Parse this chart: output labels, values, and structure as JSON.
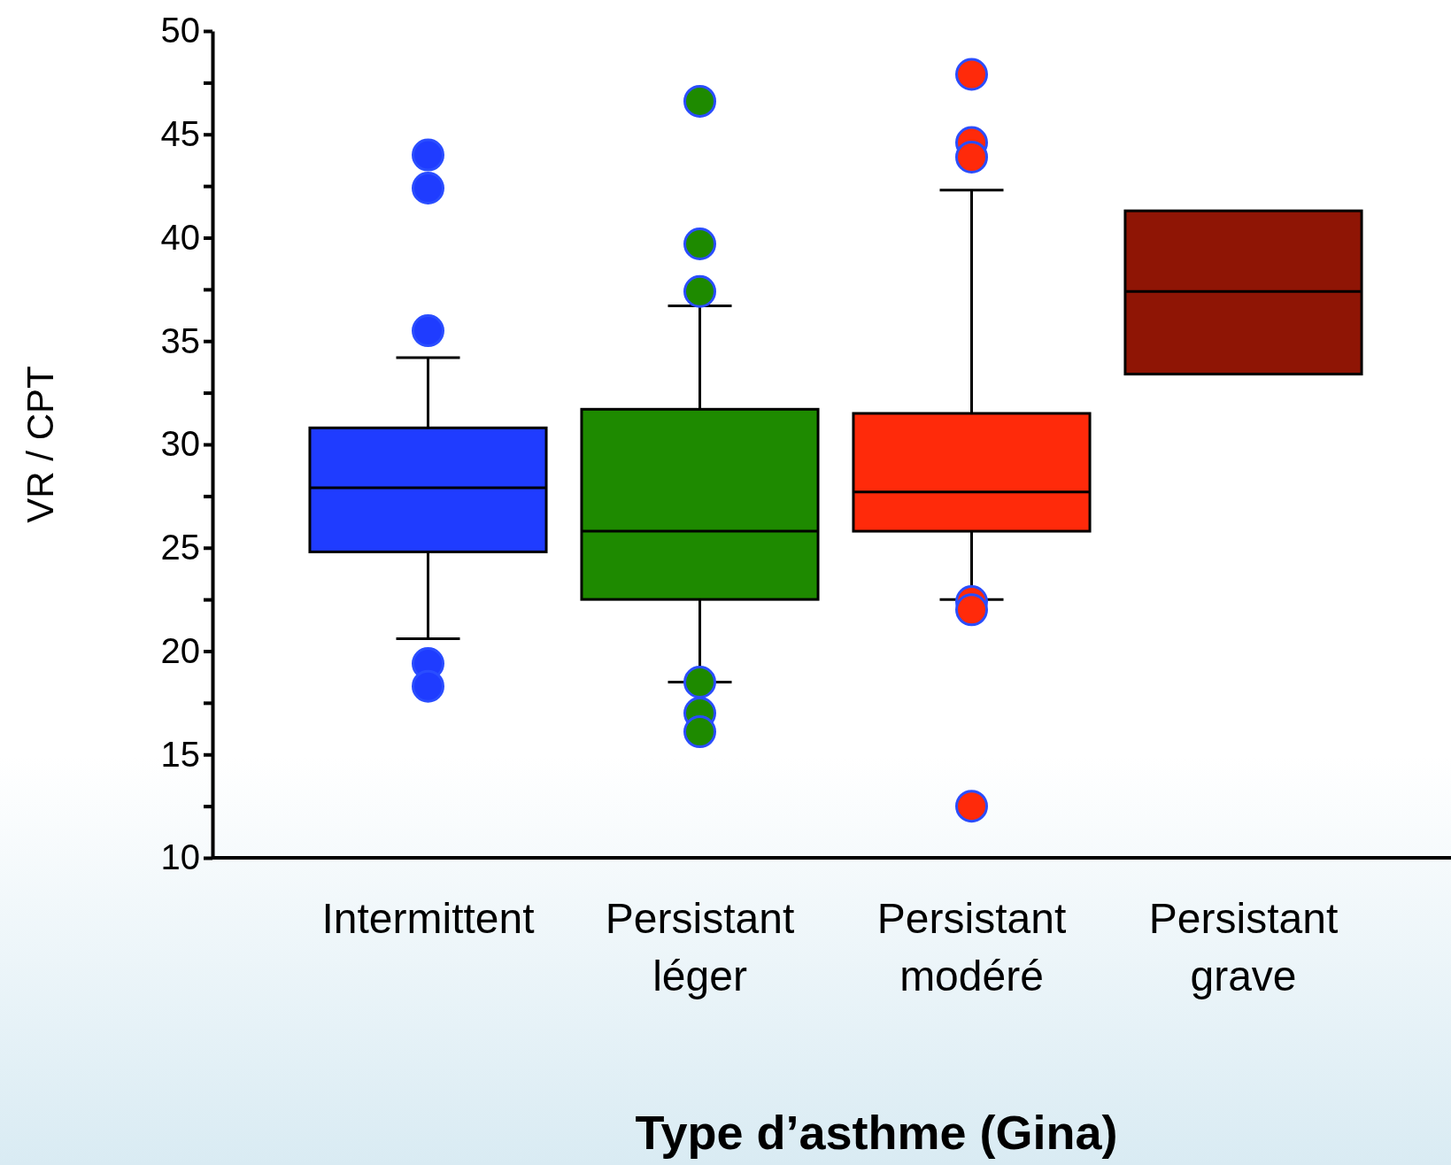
{
  "chart_data": {
    "type": "box",
    "xlabel": "Type d’asthme (Gina)",
    "ylabel": "VR / CPT",
    "categories": [
      "Intermittent",
      "Persistant léger",
      "Persistant modéré",
      "Persistant grave"
    ],
    "colors": [
      "#1f3cff",
      "#1e8a00",
      "#ff2a0a",
      "#8f1505"
    ],
    "boxes": [
      {
        "low": 20.6,
        "q1": 24.8,
        "median": 27.9,
        "q3": 30.8,
        "high": 34.2,
        "outliers": [
          44.0,
          42.4,
          35.5,
          19.4,
          18.3
        ]
      },
      {
        "low": 18.5,
        "q1": 22.5,
        "median": 25.8,
        "q3": 31.7,
        "high": 36.7,
        "outliers": [
          46.6,
          39.7,
          37.4,
          18.5,
          17.0,
          16.1
        ]
      },
      {
        "low": 22.5,
        "q1": 25.8,
        "median": 27.7,
        "q3": 31.5,
        "high": 42.3,
        "outliers": [
          47.9,
          44.6,
          43.9,
          22.4,
          22.0,
          12.5
        ]
      },
      {
        "low": 33.4,
        "q1": 33.4,
        "median": 37.4,
        "q3": 41.3,
        "high": 41.3
      }
    ],
    "ylim": [
      10,
      50
    ],
    "yticks": [
      10,
      {
        "value": 12.5,
        "label": null
      },
      15,
      {
        "value": 17.5,
        "label": null
      },
      20,
      {
        "value": 22.5,
        "label": null
      },
      25,
      {
        "value": 27.5,
        "label": null
      },
      30,
      {
        "value": 32.5,
        "label": null
      },
      35,
      {
        "value": 37.5,
        "label": null
      },
      40,
      {
        "value": 42.5,
        "label": null
      },
      45,
      {
        "value": 47.5,
        "label": null
      },
      50
    ],
    "grid": false
  }
}
